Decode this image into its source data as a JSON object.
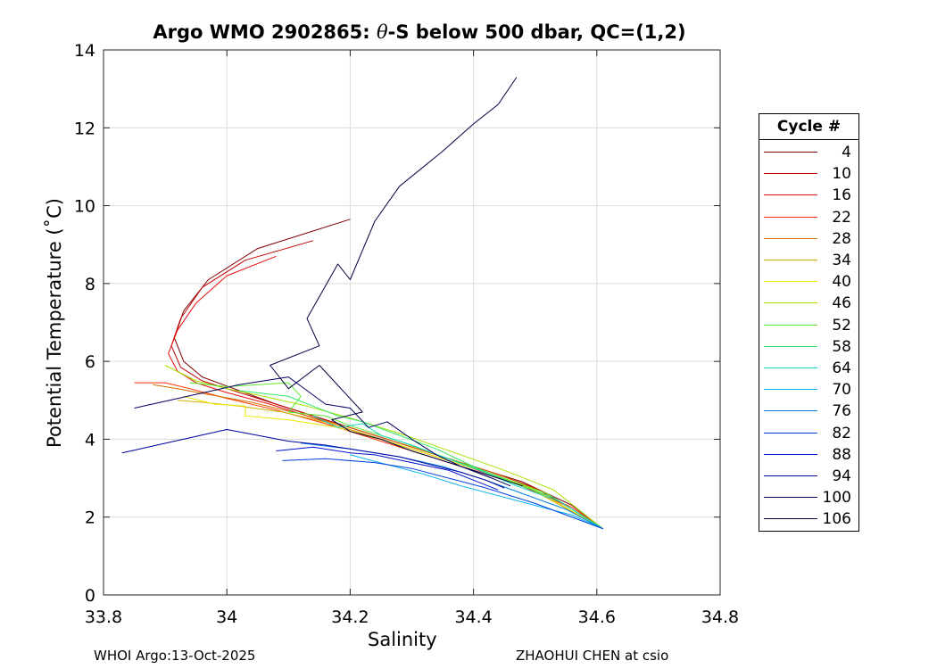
{
  "title_pre": "Argo WMO 2902865: ",
  "title_theta": "θ",
  "title_post": "-S below 500 dbar,  QC=(1,2)",
  "footer_left": "WHOI Argo:13-Oct-2025",
  "footer_right": "ZHAOHUI CHEN at csio",
  "legend": {
    "title": "Cycle #",
    "items": [
      {
        "label": "4",
        "color": "#7f0000"
      },
      {
        "label": "10",
        "color": "#c00000"
      },
      {
        "label": "16",
        "color": "#e81010"
      },
      {
        "label": "22",
        "color": "#ff3000"
      },
      {
        "label": "28",
        "color": "#d07000"
      },
      {
        "label": "34",
        "color": "#d0b000"
      },
      {
        "label": "40",
        "color": "#e8e800"
      },
      {
        "label": "46",
        "color": "#a8e000"
      },
      {
        "label": "52",
        "color": "#60e830"
      },
      {
        "label": "58",
        "color": "#30e870"
      },
      {
        "label": "64",
        "color": "#10d8c0"
      },
      {
        "label": "70",
        "color": "#00b0f0"
      },
      {
        "label": "76",
        "color": "#0080e0"
      },
      {
        "label": "82",
        "color": "#0040e0"
      },
      {
        "label": "88",
        "color": "#0010d0"
      },
      {
        "label": "94",
        "color": "#0000a0"
      },
      {
        "label": "100",
        "color": "#000060"
      },
      {
        "label": "106",
        "color": "#000040"
      }
    ]
  },
  "chart_data": {
    "type": "line",
    "title": "Argo WMO 2902865: θ-S below 500 dbar,  QC=(1,2)",
    "xlabel": "Salinity",
    "ylabel": "Potential Temperature (˚C)",
    "xlim": [
      33.8,
      34.8
    ],
    "ylim": [
      0,
      14
    ],
    "xticks": [
      33.8,
      34,
      34.2,
      34.4,
      34.6,
      34.8
    ],
    "xtick_labels": [
      "33.8",
      "34",
      "34.2",
      "34.4",
      "34.6",
      "34.8"
    ],
    "yticks": [
      0,
      2,
      4,
      6,
      8,
      10,
      12,
      14
    ],
    "ytick_labels": [
      "0",
      "2",
      "4",
      "6",
      "8",
      "10",
      "12",
      "14"
    ],
    "grid": true,
    "legend_position": "outside-right",
    "series": [
      {
        "name": "4",
        "color": "#7f0000",
        "x": [
          34.2,
          34.05,
          33.97,
          33.93,
          33.915,
          33.93,
          33.96,
          34.02,
          34.08,
          34.16,
          34.24,
          34.32,
          34.4,
          34.48,
          34.56,
          34.61
        ],
        "y": [
          9.65,
          8.9,
          8.1,
          7.3,
          6.6,
          6.0,
          5.6,
          5.25,
          4.9,
          4.5,
          4.1,
          3.7,
          3.3,
          2.9,
          2.3,
          1.7
        ]
      },
      {
        "name": "10",
        "color": "#c00000",
        "x": [
          34.14,
          34.03,
          33.96,
          33.925,
          33.91,
          33.925,
          33.96,
          34.03,
          34.1,
          34.18,
          34.26,
          34.34,
          34.42,
          34.5,
          34.56,
          34.61
        ],
        "y": [
          9.1,
          8.6,
          7.9,
          7.1,
          6.4,
          5.85,
          5.5,
          5.15,
          4.8,
          4.4,
          4.0,
          3.6,
          3.2,
          2.75,
          2.2,
          1.7
        ]
      },
      {
        "name": "16",
        "color": "#e81010",
        "x": [
          34.08,
          34.0,
          33.95,
          33.92,
          33.905,
          33.92,
          33.95,
          34.0,
          34.07,
          34.15,
          34.23,
          34.31,
          34.39,
          34.47,
          34.55,
          34.61
        ],
        "y": [
          8.7,
          8.2,
          7.5,
          6.8,
          6.2,
          5.75,
          5.45,
          5.2,
          4.9,
          4.5,
          4.1,
          3.7,
          3.3,
          2.85,
          2.3,
          1.7
        ]
      },
      {
        "name": "22",
        "color": "#ff3000",
        "x": [
          33.85,
          33.9,
          33.94,
          34.0,
          34.08,
          34.16,
          34.24,
          34.32,
          34.4,
          34.48,
          34.56,
          34.61
        ],
        "y": [
          5.45,
          5.45,
          5.3,
          5.05,
          4.75,
          4.4,
          4.0,
          3.6,
          3.2,
          2.8,
          2.25,
          1.7
        ]
      },
      {
        "name": "28",
        "color": "#d07000",
        "x": [
          33.88,
          33.92,
          33.97,
          34.04,
          34.12,
          34.2,
          34.28,
          34.36,
          34.44,
          34.52,
          34.61
        ],
        "y": [
          5.4,
          5.3,
          5.15,
          4.95,
          4.65,
          4.3,
          3.9,
          3.5,
          3.1,
          2.6,
          1.7
        ]
      },
      {
        "name": "34",
        "color": "#d0b000",
        "x": [
          33.92,
          33.96,
          34.02,
          34.09,
          34.17,
          34.25,
          34.33,
          34.41,
          34.49,
          34.61
        ],
        "y": [
          5.0,
          4.95,
          4.85,
          4.7,
          4.4,
          4.0,
          3.6,
          3.2,
          2.75,
          1.7
        ]
      },
      {
        "name": "40",
        "color": "#e8e800",
        "x": [
          33.93,
          33.98,
          34.03,
          34.03,
          34.1,
          34.18,
          34.26,
          34.34,
          34.42,
          34.5,
          34.61
        ],
        "y": [
          5.1,
          4.9,
          4.85,
          4.6,
          4.5,
          4.3,
          3.95,
          3.55,
          3.15,
          2.7,
          1.7
        ]
      },
      {
        "name": "46",
        "color": "#a8e000",
        "x": [
          33.9,
          33.95,
          34.0,
          34.06,
          34.13,
          34.21,
          34.29,
          34.37,
          34.45,
          34.53,
          34.61
        ],
        "y": [
          5.9,
          5.5,
          5.3,
          5.1,
          4.85,
          4.5,
          4.1,
          3.65,
          3.2,
          2.7,
          1.7
        ]
      },
      {
        "name": "52",
        "color": "#60e830",
        "x": [
          33.94,
          34.0,
          34.1,
          34.12,
          34.1,
          34.16,
          34.2,
          34.28,
          34.36,
          34.44,
          34.52,
          34.61
        ],
        "y": [
          5.45,
          5.35,
          5.45,
          5.1,
          4.7,
          4.6,
          4.35,
          3.95,
          3.5,
          3.05,
          2.6,
          1.7
        ]
      },
      {
        "name": "58",
        "color": "#30e870",
        "x": [
          34.02,
          34.1,
          34.14,
          34.18,
          34.22,
          34.28,
          34.34,
          34.4,
          34.46,
          34.53,
          34.61
        ],
        "y": [
          5.25,
          5.1,
          4.85,
          4.6,
          4.45,
          4.1,
          3.75,
          3.3,
          2.9,
          2.5,
          1.7
        ]
      },
      {
        "name": "64",
        "color": "#10d8c0",
        "x": [
          34.14,
          34.18,
          34.22,
          34.25,
          34.3,
          34.35,
          34.41,
          34.47,
          34.54,
          34.61
        ],
        "y": [
          4.6,
          4.3,
          4.4,
          4.1,
          3.85,
          3.55,
          3.2,
          2.8,
          2.4,
          1.7
        ]
      },
      {
        "name": "70",
        "color": "#00b0f0",
        "x": [
          34.2,
          34.26,
          34.32,
          34.38,
          34.44,
          34.5,
          34.56,
          34.61
        ],
        "y": [
          3.6,
          3.35,
          3.1,
          2.8,
          2.55,
          2.3,
          2.05,
          1.7
        ]
      },
      {
        "name": "76",
        "color": "#0080e0",
        "x": [
          34.12,
          34.2,
          34.28,
          34.35,
          34.42,
          34.48,
          34.55,
          34.61
        ],
        "y": [
          3.9,
          3.75,
          3.55,
          3.3,
          2.95,
          2.6,
          2.2,
          1.7
        ]
      },
      {
        "name": "82",
        "color": "#0040e0",
        "x": [
          34.09,
          34.16,
          34.24,
          34.3,
          34.36,
          34.42,
          34.5,
          34.61
        ],
        "y": [
          3.45,
          3.5,
          3.4,
          3.25,
          3.0,
          2.75,
          2.35,
          1.7
        ]
      },
      {
        "name": "88",
        "color": "#0010d0",
        "x": [
          34.08,
          34.14,
          34.2,
          34.24,
          34.3,
          34.36,
          34.4,
          34.44
        ],
        "y": [
          3.7,
          3.8,
          3.65,
          3.6,
          3.4,
          3.2,
          2.95,
          2.7
        ]
      },
      {
        "name": "94",
        "color": "#0000a0",
        "x": [
          33.83,
          34.0,
          34.1,
          34.16,
          34.22,
          34.28,
          34.33,
          34.38,
          34.42,
          34.45
        ],
        "y": [
          3.65,
          4.25,
          3.95,
          3.85,
          3.7,
          3.55,
          3.35,
          3.15,
          2.95,
          2.75
        ]
      },
      {
        "name": "100",
        "color": "#000060",
        "x": [
          33.85,
          34.02,
          34.1,
          34.16,
          34.2,
          34.23,
          34.26,
          34.3,
          34.34,
          34.38,
          34.43,
          34.46
        ],
        "y": [
          4.8,
          5.4,
          5.6,
          4.9,
          4.8,
          4.3,
          4.45,
          4.0,
          3.6,
          3.3,
          3.0,
          2.8
        ]
      },
      {
        "name": "106",
        "color": "#000040",
        "x": [
          34.47,
          34.44,
          34.4,
          34.35,
          34.28,
          34.24,
          34.2,
          34.18,
          34.13,
          34.15,
          34.07,
          34.1,
          34.15,
          34.22,
          34.17,
          34.2,
          34.25,
          34.3,
          34.36,
          34.42,
          34.48
        ],
        "y": [
          13.3,
          12.6,
          12.1,
          11.4,
          10.5,
          9.6,
          8.1,
          8.5,
          7.1,
          6.4,
          5.9,
          5.3,
          5.9,
          4.7,
          4.5,
          4.2,
          4.0,
          3.7,
          3.4,
          3.1,
          2.8
        ]
      }
    ]
  }
}
